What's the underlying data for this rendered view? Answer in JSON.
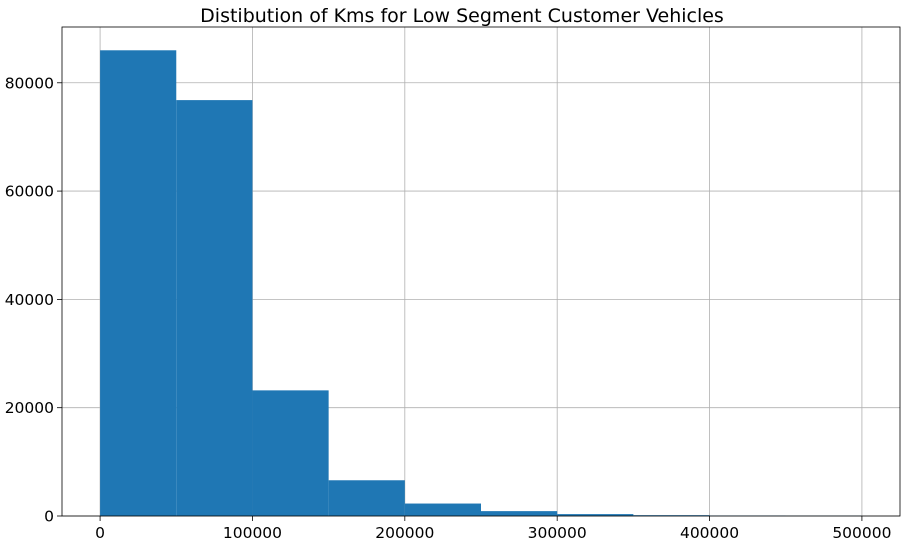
{
  "chart_data": {
    "type": "bar",
    "title": "Distibution of Kms for Low Segment Customer Vehicles",
    "xlabel": "",
    "ylabel": "",
    "bins": [
      {
        "x0": 0,
        "x1": 50000,
        "value": 86000
      },
      {
        "x0": 50000,
        "x1": 100000,
        "value": 76800
      },
      {
        "x0": 100000,
        "x1": 150000,
        "value": 23200
      },
      {
        "x0": 150000,
        "x1": 200000,
        "value": 6600
      },
      {
        "x0": 200000,
        "x1": 250000,
        "value": 2300
      },
      {
        "x0": 250000,
        "x1": 300000,
        "value": 900
      },
      {
        "x0": 300000,
        "x1": 350000,
        "value": 350
      },
      {
        "x0": 350000,
        "x1": 400000,
        "value": 150
      },
      {
        "x0": 400000,
        "x1": 450000,
        "value": 80
      },
      {
        "x0": 450000,
        "x1": 500000,
        "value": 50
      }
    ],
    "xlim": [
      -25000,
      525000
    ],
    "ylim": [
      0,
      90300
    ],
    "xticks": [
      0,
      100000,
      200000,
      300000,
      400000,
      500000
    ],
    "xtick_labels": [
      "0",
      "100000",
      "200000",
      "300000",
      "400000",
      "500000"
    ],
    "yticks": [
      0,
      20000,
      40000,
      60000,
      80000
    ],
    "ytick_labels": [
      "0",
      "20000",
      "40000",
      "60000",
      "80000"
    ],
    "grid": true,
    "bar_color": "#1f77b4"
  }
}
